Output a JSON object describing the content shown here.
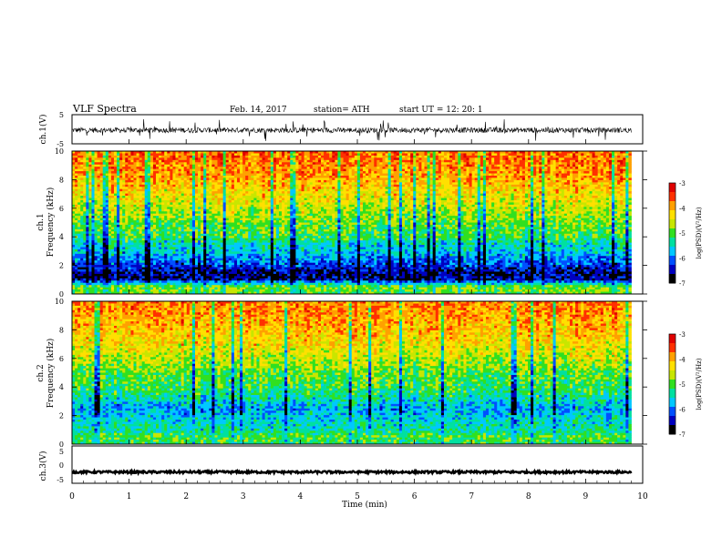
{
  "header": {
    "title": "VLF  Spectra",
    "date": "Feb. 14, 2017",
    "station": "station= ATH",
    "start": "start  UT  =    12: 20: 1"
  },
  "x_axis": {
    "label": "Time  (min)",
    "ticks": [
      "0",
      "1",
      "2",
      "3",
      "4",
      "5",
      "6",
      "7",
      "8",
      "9",
      "10"
    ]
  },
  "colorbars": [
    {
      "label": "log(PSD)(V²/Hz)",
      "ticks": [
        "-3",
        "-4",
        "-5",
        "-6",
        "-7"
      ]
    },
    {
      "label": "log(PSD)(V²/Hz)",
      "ticks": [
        "-3",
        "-4",
        "-5",
        "-6",
        "-7"
      ]
    }
  ],
  "colors": {
    "colormap": [
      "#000000",
      "#0000c0",
      "#0050ff",
      "#00c8ff",
      "#00e0a0",
      "#30e020",
      "#c8e600",
      "#ffe000",
      "#ffa000",
      "#ff3000",
      "#e00000",
      "#ffffff"
    ]
  },
  "chart_data": [
    {
      "type": "line",
      "panel": "ch1",
      "ylabel": "ch.1(V)",
      "ylim": [
        -5,
        5
      ],
      "y_ticks": [
        "5",
        "-5"
      ],
      "xlim": [
        0,
        10
      ],
      "description_series": "broadband waveform, mean about -0.3 V, amplitude about ±1.5 V, spikes up to ±4 V",
      "series": [
        {
          "x_range": [
            0,
            9.8
          ],
          "mean": -0.3,
          "amplitude": 1.5
        }
      ]
    },
    {
      "type": "heatmap",
      "panel": "ch1-spectrogram",
      "ylabel": "ch.1 Frequency (kHz)",
      "ylim": [
        0,
        10
      ],
      "y_ticks": [
        "10",
        "8",
        "6",
        "4",
        "2",
        "0"
      ],
      "xlim": [
        0,
        10
      ],
      "x_data_range": [
        0,
        9.8
      ],
      "value_range": [
        -7,
        -3
      ],
      "value_profile_khz": [
        [
          0,
          -5.0
        ],
        [
          0.5,
          -4.8
        ],
        [
          1,
          -6.5
        ],
        [
          1.5,
          -6.6
        ],
        [
          2,
          -6.2
        ],
        [
          2.5,
          -5.9
        ],
        [
          3,
          -5.6
        ],
        [
          3.5,
          -5.5
        ],
        [
          4,
          -5.1
        ],
        [
          5,
          -4.9
        ],
        [
          6,
          -4.6
        ],
        [
          7,
          -4.3
        ],
        [
          8,
          -4.0
        ],
        [
          9,
          -3.8
        ],
        [
          10,
          -3.7
        ]
      ]
    },
    {
      "type": "heatmap",
      "panel": "ch2-spectrogram",
      "ylabel": "ch.2 Frequency (kHz)",
      "ylim": [
        0,
        10
      ],
      "y_ticks": [
        "10",
        "8",
        "6",
        "4",
        "2",
        "0"
      ],
      "xlim": [
        0,
        10
      ],
      "x_data_range": [
        0,
        9.8
      ],
      "value_range": [
        -7,
        -3
      ],
      "value_profile_khz": [
        [
          0,
          -5.2
        ],
        [
          0.5,
          -5.0
        ],
        [
          1,
          -5.4
        ],
        [
          1.5,
          -5.5
        ],
        [
          2,
          -5.6
        ],
        [
          2.5,
          -5.8
        ],
        [
          3,
          -5.5
        ],
        [
          3.5,
          -5.3
        ],
        [
          4,
          -5.1
        ],
        [
          5,
          -4.9
        ],
        [
          6,
          -4.6
        ],
        [
          7,
          -4.3
        ],
        [
          8,
          -4.1
        ],
        [
          9,
          -3.9
        ],
        [
          10,
          -3.8
        ]
      ]
    },
    {
      "type": "line",
      "panel": "ch3",
      "ylabel": "ch.3(V)",
      "ylim": [
        -5,
        5
      ],
      "y_ticks": [
        "5",
        "0",
        "-5"
      ],
      "xlim": [
        0,
        10
      ],
      "series": [
        {
          "x_range": [
            0,
            9.8
          ],
          "mean": -2.0,
          "amplitude": 0.3
        }
      ]
    }
  ]
}
